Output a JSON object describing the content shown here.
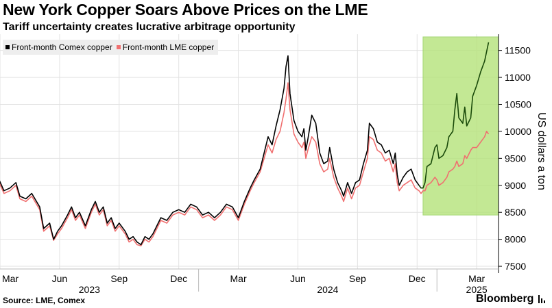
{
  "header": {
    "title": "New York Copper Soars Above Prices on the LME",
    "subtitle": "Tariff uncertainty creates lucrative arbitrage opportunity"
  },
  "legend": {
    "comex_label": "Front-month Comex copper",
    "lme_label": "Front-month LME copper"
  },
  "footer": {
    "source": "Source: LME, Comex",
    "brand": "Bloomberg"
  },
  "colors": {
    "comex": "#000000",
    "comex_highlight": "#1a4a0a",
    "lme": "#f07070",
    "highlight_fill": "#b5e37a",
    "highlight_stroke": "#8fcc55",
    "grid": "#e2e2e2",
    "axis": "#000000"
  },
  "chart_data": {
    "type": "line",
    "title": "New York Copper Soars Above Prices on the LME",
    "ylabel": "US dollars a ton",
    "ylim": [
      7450,
      11800
    ],
    "yticks": [
      7500,
      8000,
      8500,
      9000,
      9500,
      10000,
      10500,
      11000,
      11500
    ],
    "ytick_labels": [
      "7500",
      "8000",
      "8500",
      "9000",
      "9500",
      "10000",
      "10500",
      "11000",
      "11500"
    ],
    "x_range": [
      0,
      25.1
    ],
    "x_unit": "months since 2023-03-01",
    "x_ticks": [
      {
        "x": 0,
        "label": "Mar"
      },
      {
        "x": 3,
        "label": "Jun"
      },
      {
        "x": 6,
        "label": "Sep"
      },
      {
        "x": 9,
        "label": "Dec"
      },
      {
        "x": 12,
        "label": "Mar"
      },
      {
        "x": 15,
        "label": "Jun"
      },
      {
        "x": 18,
        "label": "Sep"
      },
      {
        "x": 21,
        "label": "Dec"
      },
      {
        "x": 24,
        "label": "Mar"
      }
    ],
    "year_labels": [
      {
        "x": 4.5,
        "label": "2023"
      },
      {
        "x": 16.5,
        "label": "2024"
      },
      {
        "x": 24,
        "label": "2025"
      }
    ],
    "highlight": {
      "x_from": 21.3,
      "x_to": 25.1,
      "y_from": 8450,
      "y_to": 11750
    },
    "series": [
      {
        "name": "Front-month Comex copper",
        "points": [
          [
            -0.1,
            9150
          ],
          [
            0.2,
            8900
          ],
          [
            0.5,
            8950
          ],
          [
            0.8,
            9050
          ],
          [
            1.0,
            8800
          ],
          [
            1.3,
            8750
          ],
          [
            1.6,
            8850
          ],
          [
            2.0,
            8600
          ],
          [
            2.2,
            8200
          ],
          [
            2.5,
            8300
          ],
          [
            2.7,
            8000
          ],
          [
            2.9,
            8150
          ],
          [
            3.1,
            8250
          ],
          [
            3.4,
            8450
          ],
          [
            3.6,
            8600
          ],
          [
            3.8,
            8400
          ],
          [
            4.0,
            8500
          ],
          [
            4.3,
            8250
          ],
          [
            4.6,
            8550
          ],
          [
            4.8,
            8700
          ],
          [
            5.0,
            8500
          ],
          [
            5.2,
            8600
          ],
          [
            5.4,
            8300
          ],
          [
            5.6,
            8400
          ],
          [
            5.8,
            8200
          ],
          [
            6.0,
            8300
          ],
          [
            6.3,
            8150
          ],
          [
            6.5,
            8000
          ],
          [
            6.7,
            8050
          ],
          [
            6.9,
            7950
          ],
          [
            7.1,
            7900
          ],
          [
            7.3,
            8050
          ],
          [
            7.5,
            8000
          ],
          [
            7.7,
            8100
          ],
          [
            7.9,
            8250
          ],
          [
            8.1,
            8400
          ],
          [
            8.4,
            8350
          ],
          [
            8.7,
            8500
          ],
          [
            9.0,
            8550
          ],
          [
            9.3,
            8500
          ],
          [
            9.6,
            8650
          ],
          [
            9.9,
            8600
          ],
          [
            10.2,
            8450
          ],
          [
            10.5,
            8500
          ],
          [
            10.8,
            8400
          ],
          [
            11.1,
            8500
          ],
          [
            11.4,
            8650
          ],
          [
            11.7,
            8600
          ],
          [
            12.0,
            8400
          ],
          [
            12.3,
            8700
          ],
          [
            12.6,
            8950
          ],
          [
            12.8,
            9100
          ],
          [
            13.1,
            9300
          ],
          [
            13.3,
            9600
          ],
          [
            13.5,
            9900
          ],
          [
            13.7,
            9750
          ],
          [
            13.9,
            10100
          ],
          [
            14.1,
            10400
          ],
          [
            14.3,
            10800
          ],
          [
            14.4,
            11200
          ],
          [
            14.5,
            11400
          ],
          [
            14.6,
            10700
          ],
          [
            14.8,
            10200
          ],
          [
            15.0,
            10000
          ],
          [
            15.2,
            9900
          ],
          [
            15.3,
            10050
          ],
          [
            15.4,
            9650
          ],
          [
            15.5,
            9850
          ],
          [
            15.7,
            10300
          ],
          [
            15.9,
            10150
          ],
          [
            16.1,
            9600
          ],
          [
            16.3,
            9400
          ],
          [
            16.5,
            9450
          ],
          [
            16.6,
            9700
          ],
          [
            16.8,
            9300
          ],
          [
            17.0,
            9050
          ],
          [
            17.2,
            8900
          ],
          [
            17.3,
            8800
          ],
          [
            17.5,
            9050
          ],
          [
            17.7,
            8850
          ],
          [
            17.9,
            9050
          ],
          [
            18.1,
            9100
          ],
          [
            18.3,
            9400
          ],
          [
            18.5,
            9650
          ],
          [
            18.6,
            10150
          ],
          [
            18.8,
            10050
          ],
          [
            19.0,
            9800
          ],
          [
            19.2,
            9750
          ],
          [
            19.4,
            9600
          ],
          [
            19.6,
            9650
          ],
          [
            19.8,
            9400
          ],
          [
            19.9,
            9600
          ],
          [
            20.0,
            9200
          ],
          [
            20.1,
            9000
          ],
          [
            20.3,
            9150
          ],
          [
            20.5,
            9250
          ],
          [
            20.7,
            9300
          ],
          [
            20.9,
            9100
          ],
          [
            21.1,
            9000
          ],
          [
            21.2,
            8950
          ],
          [
            21.3,
            8950
          ],
          [
            21.4,
            9050
          ],
          [
            21.5,
            9350
          ],
          [
            21.7,
            9400
          ],
          [
            21.9,
            9700
          ],
          [
            22.0,
            9750
          ],
          [
            22.1,
            9500
          ],
          [
            22.3,
            9550
          ],
          [
            22.5,
            9700
          ],
          [
            22.6,
            9900
          ],
          [
            22.8,
            10000
          ],
          [
            22.9,
            10400
          ],
          [
            23.0,
            10700
          ],
          [
            23.1,
            10250
          ],
          [
            23.3,
            10150
          ],
          [
            23.4,
            10450
          ],
          [
            23.5,
            10100
          ],
          [
            23.7,
            10250
          ],
          [
            23.8,
            10650
          ],
          [
            24.0,
            10850
          ],
          [
            24.2,
            11100
          ],
          [
            24.4,
            11300
          ],
          [
            24.6,
            11650
          ]
        ]
      },
      {
        "name": "Front-month LME copper",
        "points": [
          [
            -0.1,
            9100
          ],
          [
            0.2,
            8850
          ],
          [
            0.5,
            8900
          ],
          [
            0.8,
            9000
          ],
          [
            1.0,
            8750
          ],
          [
            1.3,
            8700
          ],
          [
            1.6,
            8800
          ],
          [
            2.0,
            8550
          ],
          [
            2.2,
            8150
          ],
          [
            2.5,
            8250
          ],
          [
            2.7,
            7980
          ],
          [
            2.9,
            8100
          ],
          [
            3.1,
            8200
          ],
          [
            3.4,
            8400
          ],
          [
            3.6,
            8550
          ],
          [
            3.8,
            8350
          ],
          [
            4.0,
            8450
          ],
          [
            4.3,
            8200
          ],
          [
            4.6,
            8500
          ],
          [
            4.8,
            8650
          ],
          [
            5.0,
            8450
          ],
          [
            5.2,
            8550
          ],
          [
            5.4,
            8250
          ],
          [
            5.6,
            8350
          ],
          [
            5.8,
            8150
          ],
          [
            6.0,
            8250
          ],
          [
            6.3,
            8100
          ],
          [
            6.5,
            7950
          ],
          [
            6.7,
            8000
          ],
          [
            6.9,
            7900
          ],
          [
            7.1,
            7880
          ],
          [
            7.3,
            8000
          ],
          [
            7.5,
            7950
          ],
          [
            7.7,
            8050
          ],
          [
            7.9,
            8200
          ],
          [
            8.1,
            8350
          ],
          [
            8.4,
            8300
          ],
          [
            8.7,
            8450
          ],
          [
            9.0,
            8500
          ],
          [
            9.3,
            8450
          ],
          [
            9.6,
            8600
          ],
          [
            9.9,
            8550
          ],
          [
            10.2,
            8400
          ],
          [
            10.5,
            8450
          ],
          [
            10.8,
            8350
          ],
          [
            11.1,
            8450
          ],
          [
            11.4,
            8600
          ],
          [
            11.7,
            8550
          ],
          [
            12.0,
            8350
          ],
          [
            12.3,
            8650
          ],
          [
            12.6,
            8900
          ],
          [
            12.8,
            9050
          ],
          [
            13.1,
            9250
          ],
          [
            13.3,
            9500
          ],
          [
            13.5,
            9750
          ],
          [
            13.7,
            9600
          ],
          [
            13.9,
            9850
          ],
          [
            14.1,
            10000
          ],
          [
            14.3,
            10350
          ],
          [
            14.4,
            10600
          ],
          [
            14.5,
            10900
          ],
          [
            14.6,
            10400
          ],
          [
            14.8,
            9950
          ],
          [
            15.0,
            9800
          ],
          [
            15.2,
            9700
          ],
          [
            15.3,
            9800
          ],
          [
            15.4,
            9500
          ],
          [
            15.5,
            9650
          ],
          [
            15.7,
            9900
          ],
          [
            15.9,
            9800
          ],
          [
            16.1,
            9400
          ],
          [
            16.3,
            9250
          ],
          [
            16.5,
            9300
          ],
          [
            16.6,
            9500
          ],
          [
            16.8,
            9150
          ],
          [
            17.0,
            8950
          ],
          [
            17.2,
            8800
          ],
          [
            17.3,
            8700
          ],
          [
            17.5,
            8950
          ],
          [
            17.7,
            8750
          ],
          [
            17.9,
            8950
          ],
          [
            18.1,
            9000
          ],
          [
            18.3,
            9250
          ],
          [
            18.5,
            9500
          ],
          [
            18.6,
            9900
          ],
          [
            18.8,
            9850
          ],
          [
            19.0,
            9650
          ],
          [
            19.2,
            9600
          ],
          [
            19.4,
            9450
          ],
          [
            19.6,
            9500
          ],
          [
            19.8,
            9250
          ],
          [
            19.9,
            9400
          ],
          [
            20.0,
            9050
          ],
          [
            20.1,
            8900
          ],
          [
            20.3,
            9000
          ],
          [
            20.5,
            9050
          ],
          [
            20.7,
            9100
          ],
          [
            20.9,
            8950
          ],
          [
            21.1,
            8900
          ],
          [
            21.2,
            8850
          ],
          [
            21.3,
            8900
          ],
          [
            21.4,
            8900
          ],
          [
            21.5,
            9000
          ],
          [
            21.7,
            9050
          ],
          [
            21.9,
            9150
          ],
          [
            22.0,
            9100
          ],
          [
            22.1,
            9000
          ],
          [
            22.3,
            9050
          ],
          [
            22.5,
            9150
          ],
          [
            22.6,
            9250
          ],
          [
            22.8,
            9300
          ],
          [
            22.9,
            9350
          ],
          [
            23.0,
            9450
          ],
          [
            23.1,
            9350
          ],
          [
            23.3,
            9400
          ],
          [
            23.4,
            9550
          ],
          [
            23.5,
            9500
          ],
          [
            23.7,
            9650
          ],
          [
            23.8,
            9700
          ],
          [
            24.0,
            9700
          ],
          [
            24.2,
            9800
          ],
          [
            24.4,
            9900
          ],
          [
            24.5,
            10000
          ],
          [
            24.6,
            9950
          ]
        ]
      }
    ]
  }
}
